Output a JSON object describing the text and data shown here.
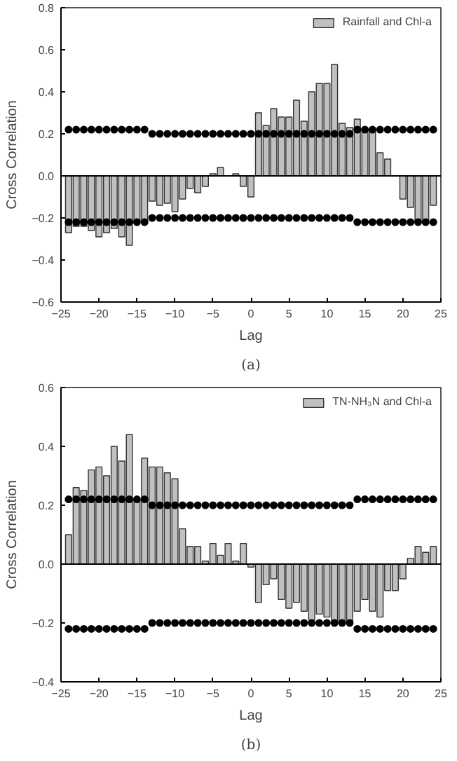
{
  "chart_data": [
    {
      "type": "bar",
      "xlabel": "Lag",
      "ylabel": "Cross Correlation",
      "annotations": [
        "(a)"
      ],
      "x": [
        -24,
        -23,
        -22,
        -21,
        -20,
        -19,
        -18,
        -17,
        -16,
        -15,
        -14,
        -13,
        -12,
        -11,
        -10,
        -9,
        -8,
        -7,
        -6,
        -5,
        -4,
        -3,
        -2,
        -1,
        0,
        1,
        2,
        3,
        4,
        5,
        6,
        7,
        8,
        9,
        10,
        11,
        12,
        13,
        14,
        15,
        16,
        17,
        18,
        19,
        20,
        21,
        22,
        23,
        24
      ],
      "series": [
        {
          "name": "Rainfall and Chl-a",
          "color": "#c0c0c0",
          "values": [
            -0.27,
            -0.24,
            -0.24,
            -0.26,
            -0.29,
            -0.27,
            -0.25,
            -0.29,
            -0.33,
            -0.22,
            -0.22,
            -0.12,
            -0.14,
            -0.13,
            -0.17,
            -0.11,
            -0.06,
            -0.08,
            -0.05,
            0.01,
            0.04,
            null,
            0.01,
            -0.05,
            -0.1,
            0.3,
            0.24,
            0.32,
            0.28,
            0.28,
            0.36,
            0.26,
            0.4,
            0.44,
            0.44,
            0.53,
            0.25,
            0.23,
            0.27,
            0.22,
            0.21,
            0.11,
            0.08,
            null,
            -0.11,
            -0.15,
            -0.22,
            -0.21,
            -0.14
          ]
        },
        {
          "type": "scatter",
          "color": "#000000",
          "marker": "circle",
          "values": [
            0.22,
            0.22,
            0.22,
            0.22,
            0.22,
            0.22,
            0.22,
            0.22,
            0.22,
            0.22,
            0.22,
            0.2,
            0.2,
            0.2,
            0.2,
            0.2,
            0.2,
            0.2,
            0.2,
            0.2,
            0.2,
            0.2,
            0.2,
            0.2,
            0.2,
            0.2,
            0.2,
            0.2,
            0.2,
            0.2,
            0.2,
            0.2,
            0.2,
            0.2,
            0.2,
            0.2,
            0.2,
            0.2,
            0.22,
            0.22,
            0.22,
            0.22,
            0.22,
            0.22,
            0.22,
            0.22,
            0.22,
            0.22,
            0.22
          ]
        },
        {
          "type": "scatter",
          "color": "#000000",
          "marker": "circle",
          "values": [
            -0.22,
            -0.22,
            -0.22,
            -0.22,
            -0.22,
            -0.22,
            -0.22,
            -0.22,
            -0.22,
            -0.22,
            -0.22,
            -0.2,
            -0.2,
            -0.2,
            -0.2,
            -0.2,
            -0.2,
            -0.2,
            -0.2,
            -0.2,
            -0.2,
            -0.2,
            -0.2,
            -0.2,
            -0.2,
            -0.2,
            -0.2,
            -0.2,
            -0.2,
            -0.2,
            -0.2,
            -0.2,
            -0.2,
            -0.2,
            -0.2,
            -0.2,
            -0.2,
            -0.2,
            -0.22,
            -0.22,
            -0.22,
            -0.22,
            -0.22,
            -0.22,
            -0.22,
            -0.22,
            -0.22,
            -0.22,
            -0.22
          ]
        }
      ],
      "xlim": [
        -25,
        25
      ],
      "xticks": [
        -25,
        -20,
        -15,
        -10,
        -5,
        0,
        5,
        10,
        15,
        20,
        25
      ],
      "ylim": [
        -0.6,
        0.8
      ],
      "yticks": [
        -0.6,
        -0.4,
        -0.2,
        {
          "value": 0,
          "label": "0.0"
        },
        0.2,
        0.4,
        0.6,
        0.8
      ],
      "ref_lines": [
        {
          "axis": "y",
          "value": 0,
          "color": "#000000"
        }
      ],
      "grid": false,
      "legend": "top right"
    },
    {
      "type": "bar",
      "xlabel": "Lag",
      "ylabel": "Cross Correlation",
      "annotations": [
        "(b)"
      ],
      "x": [
        -24,
        -23,
        -22,
        -21,
        -20,
        -19,
        -18,
        -17,
        -16,
        -15,
        -14,
        -13,
        -12,
        -11,
        -10,
        -9,
        -8,
        -7,
        -6,
        -5,
        -4,
        -3,
        -2,
        -1,
        0,
        1,
        2,
        3,
        4,
        5,
        6,
        7,
        8,
        9,
        10,
        11,
        12,
        13,
        14,
        15,
        16,
        17,
        18,
        19,
        20,
        21,
        22,
        23,
        24
      ],
      "series": [
        {
          "name": "TN-NH₃N and Chl-a",
          "color": "#c0c0c0",
          "values": [
            0.1,
            0.26,
            0.25,
            0.32,
            0.33,
            0.3,
            0.4,
            0.35,
            0.44,
            0.22,
            0.36,
            0.33,
            0.33,
            0.31,
            0.29,
            0.12,
            0.06,
            0.06,
            0.01,
            0.07,
            0.03,
            0.07,
            0.01,
            0.07,
            -0.01,
            -0.13,
            -0.07,
            -0.05,
            -0.12,
            -0.15,
            -0.13,
            -0.16,
            -0.19,
            -0.17,
            -0.18,
            -0.2,
            -0.2,
            -0.2,
            -0.16,
            -0.12,
            -0.16,
            -0.18,
            -0.09,
            -0.09,
            -0.05,
            0.02,
            0.06,
            0.04,
            0.06
          ]
        },
        {
          "type": "scatter",
          "color": "#000000",
          "marker": "circle",
          "values": [
            0.22,
            0.22,
            0.22,
            0.22,
            0.22,
            0.22,
            0.22,
            0.22,
            0.22,
            0.22,
            0.22,
            0.2,
            0.2,
            0.2,
            0.2,
            0.2,
            0.2,
            0.2,
            0.2,
            0.2,
            0.2,
            0.2,
            0.2,
            0.2,
            0.2,
            0.2,
            0.2,
            0.2,
            0.2,
            0.2,
            0.2,
            0.2,
            0.2,
            0.2,
            0.2,
            0.2,
            0.2,
            0.2,
            0.22,
            0.22,
            0.22,
            0.22,
            0.22,
            0.22,
            0.22,
            0.22,
            0.22,
            0.22,
            0.22
          ]
        },
        {
          "type": "scatter",
          "color": "#000000",
          "marker": "circle",
          "values": [
            -0.22,
            -0.22,
            -0.22,
            -0.22,
            -0.22,
            -0.22,
            -0.22,
            -0.22,
            -0.22,
            -0.22,
            -0.22,
            -0.2,
            -0.2,
            -0.2,
            -0.2,
            -0.2,
            -0.2,
            -0.2,
            -0.2,
            -0.2,
            -0.2,
            -0.2,
            -0.2,
            -0.2,
            -0.2,
            -0.2,
            -0.2,
            -0.2,
            -0.2,
            -0.2,
            -0.2,
            -0.2,
            -0.2,
            -0.2,
            -0.2,
            -0.2,
            -0.2,
            -0.2,
            -0.22,
            -0.22,
            -0.22,
            -0.22,
            -0.22,
            -0.22,
            -0.22,
            -0.22,
            -0.22,
            -0.22,
            -0.22
          ]
        }
      ],
      "xlim": [
        -25,
        25
      ],
      "xticks": [
        -25,
        -20,
        -15,
        -10,
        -5,
        0,
        5,
        10,
        15,
        20,
        25
      ],
      "ylim": [
        -0.4,
        0.6
      ],
      "yticks": [
        -0.4,
        -0.2,
        {
          "value": 0,
          "label": "0.0"
        },
        0.2,
        0.4,
        0.6
      ],
      "ref_lines": [
        {
          "axis": "y",
          "value": 0,
          "color": "#000000"
        }
      ],
      "grid": false,
      "legend": "top right"
    }
  ]
}
